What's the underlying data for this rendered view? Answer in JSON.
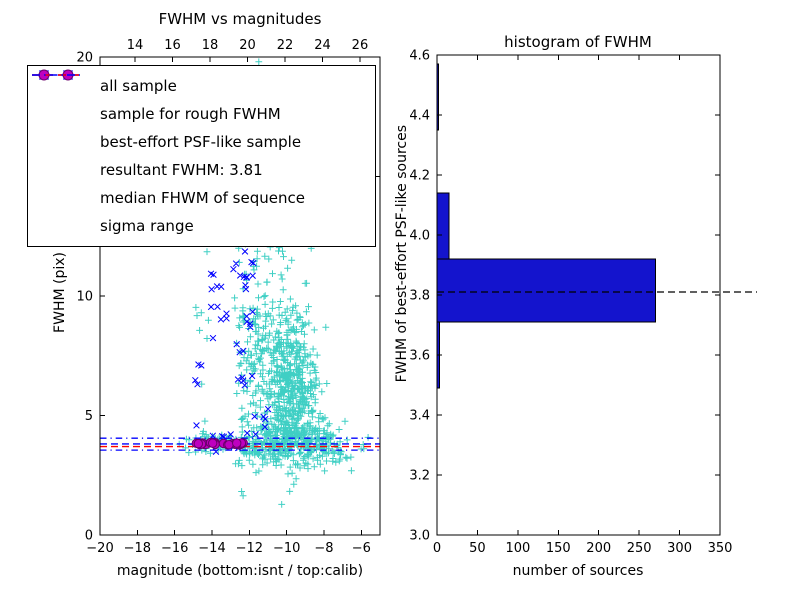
{
  "chart_data": [
    {
      "type": "scatter",
      "title": "FWHM vs magnitudes",
      "xlabel": "magnitude (bottom:isnt / top:calib)",
      "ylabel": "FWHM (pix)",
      "xlim": [
        -20,
        -5
      ],
      "xlim_top": [
        12.13,
        27.07
      ],
      "ylim": [
        0,
        20
      ],
      "x_ticks_bottom": [
        -20,
        -18,
        -16,
        -14,
        -12,
        -10,
        -8,
        -6
      ],
      "x_ticks_top": [
        14,
        16,
        18,
        20,
        22,
        24,
        26
      ],
      "y_ticks": [
        0,
        5,
        10,
        15,
        20
      ],
      "series": [
        {
          "name": "all sample",
          "marker": "plus",
          "color": "#3fcfc4",
          "clusters": [
            {
              "cx": -9.8,
              "cy": 6.2,
              "sx": 0.7,
              "sy": 1.5,
              "n": 500
            },
            {
              "cx": -9.6,
              "cy": 4.0,
              "sx": 1.1,
              "sy": 0.45,
              "n": 180
            },
            {
              "cx": -11.35,
              "cy": 7.8,
              "sx": 0.4,
              "sy": 2.0,
              "n": 120
            },
            {
              "cx": -12.35,
              "cy": 8.0,
              "sx": 0.22,
              "sy": 2.6,
              "n": 50
            },
            {
              "cx": -13.6,
              "cy": 3.85,
              "sx": 0.9,
              "sy": 0.22,
              "n": 70
            },
            {
              "cx": -8.0,
              "cy": 3.7,
              "sx": 0.9,
              "sy": 0.5,
              "n": 90
            },
            {
              "cx": -10.2,
              "cy": 13.0,
              "sx": 0.7,
              "sy": 2.2,
              "n": 40
            },
            {
              "cx": -14.6,
              "cy": 8.0,
              "sx": 0.35,
              "sy": 2.5,
              "n": 12
            },
            {
              "cx": -10.1,
              "cy": 18.3,
              "sx": 1.0,
              "sy": 1.0,
              "n": 8
            },
            {
              "cx": -11.2,
              "cy": 3.6,
              "sx": 0.8,
              "sy": 0.4,
              "n": 100
            }
          ]
        },
        {
          "name": "sample for rough FWHM",
          "marker": "x",
          "color": "#0000ff",
          "clusters": [
            {
              "cx": -13.55,
              "cy": 9.8,
              "sx": 0.3,
              "sy": 1.3,
              "n": 12
            },
            {
              "cx": -12.15,
              "cy": 10.8,
              "sx": 0.25,
              "sy": 1.2,
              "n": 16
            },
            {
              "cx": -12.5,
              "cy": 6.5,
              "sx": 0.35,
              "sy": 1.2,
              "n": 9
            },
            {
              "cx": -13.6,
              "cy": 4.15,
              "sx": 0.7,
              "sy": 0.3,
              "n": 9
            },
            {
              "cx": -11.3,
              "cy": 4.8,
              "sx": 0.5,
              "sy": 0.6,
              "n": 6
            },
            {
              "cx": -14.4,
              "cy": 6.2,
              "sx": 0.25,
              "sy": 0.9,
              "n": 4
            },
            {
              "cx": -11.9,
              "cy": 12.9,
              "sx": 0.3,
              "sy": 0.6,
              "n": 5
            }
          ]
        },
        {
          "name": "best-effort PSF-like sample",
          "marker": "circle",
          "color": "#bf00bf",
          "edge_color": "#6a006a",
          "clusters": [
            {
              "cx": -13.5,
              "cy": 3.82,
              "sx": 1.35,
              "sy": 0.05,
              "n": 26,
              "dist": "uniform"
            }
          ]
        }
      ],
      "lines": [
        {
          "name": "resultant FWHM",
          "y": 3.81,
          "color": "#0000ff",
          "style": "dashed"
        },
        {
          "name": "median FHWM of sequence",
          "y": 3.7,
          "color": "#ff0000",
          "style": "dashed"
        },
        {
          "name": "sigma range low",
          "y": 3.55,
          "color": "#0000ff",
          "style": "dashdot"
        },
        {
          "name": "sigma range high",
          "y": 4.05,
          "color": "#0000ff",
          "style": "dashdot"
        }
      ],
      "resultant_fwhm": 3.81,
      "legend": [
        {
          "label": "all sample",
          "marker": "plus",
          "color": "#3fcfc4"
        },
        {
          "label": "sample for rough FWHM",
          "marker": "x",
          "color": "#0000ff"
        },
        {
          "label": "best-effort PSF-like sample",
          "marker": "circle",
          "color": "#bf00bf"
        },
        {
          "label": "resultant FWHM: 3.81",
          "marker": "dashed-line",
          "color": "#0000ff"
        },
        {
          "label": "median FHWM of sequence",
          "marker": "dashed-line",
          "color": "#ff0000"
        },
        {
          "label": "sigma range",
          "marker": "dashdot-line",
          "color": "#0000ff"
        }
      ]
    },
    {
      "type": "bar",
      "orientation": "horizontal",
      "title": "histogram of FWHM",
      "xlabel": "number of sources",
      "ylabel": "FWHM of best-effort PSF-like sources",
      "xlim": [
        0,
        350
      ],
      "ylim": [
        3.0,
        4.6
      ],
      "x_ticks": [
        0,
        50,
        100,
        150,
        200,
        250,
        300,
        350
      ],
      "y_ticks": [
        3.0,
        3.2,
        3.4,
        3.6,
        3.8,
        4.0,
        4.2,
        4.4,
        4.6
      ],
      "y_tick_decimals": 1,
      "bin_edges": [
        3.49,
        3.71,
        3.92,
        4.14,
        4.35,
        4.57
      ],
      "counts": [
        3,
        270,
        15,
        0,
        2
      ],
      "bar_color": "#1414cd",
      "bar_edge_color": "#000000",
      "median_line": {
        "y": 3.81,
        "color": "#000000",
        "style": "dashed"
      }
    }
  ]
}
